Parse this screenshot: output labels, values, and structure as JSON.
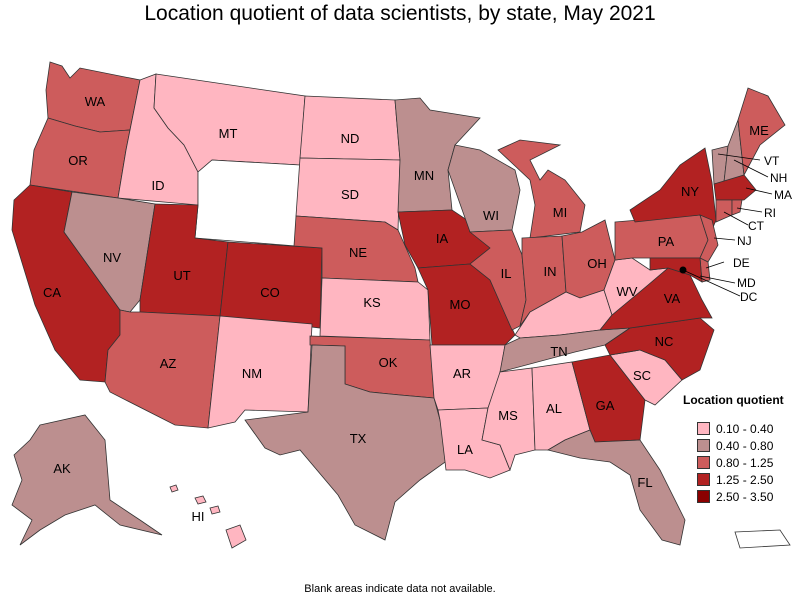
{
  "title": "Location quotient of data scientists, by state, May 2021",
  "footnote": "Blank areas indicate data not available.",
  "legend": {
    "title": "Location quotient",
    "items": [
      {
        "label": "0.10 - 0.40",
        "color": "#ffb6c1"
      },
      {
        "label": "0.40 - 0.80",
        "color": "#bc8f8f"
      },
      {
        "label": "0.80 - 1.25",
        "color": "#cd5c5c"
      },
      {
        "label": "1.25 - 2.50",
        "color": "#b22222"
      },
      {
        "label": "2.50 - 3.50",
        "color": "#8b0000"
      }
    ]
  },
  "states": {
    "WA": {
      "label": "WA",
      "bin": 2
    },
    "OR": {
      "label": "OR",
      "bin": 2
    },
    "CA": {
      "label": "CA",
      "bin": 3
    },
    "ID": {
      "label": "ID",
      "bin": 0
    },
    "NV": {
      "label": "NV",
      "bin": 1
    },
    "MT": {
      "label": "MT",
      "bin": 0
    },
    "WY": {
      "label": "",
      "bin": -1
    },
    "UT": {
      "label": "UT",
      "bin": 3
    },
    "AZ": {
      "label": "AZ",
      "bin": 2
    },
    "CO": {
      "label": "CO",
      "bin": 3
    },
    "NM": {
      "label": "NM",
      "bin": 0
    },
    "ND": {
      "label": "ND",
      "bin": 0
    },
    "SD": {
      "label": "SD",
      "bin": 0
    },
    "NE": {
      "label": "NE",
      "bin": 2
    },
    "KS": {
      "label": "KS",
      "bin": 0
    },
    "OK": {
      "label": "OK",
      "bin": 2
    },
    "TX": {
      "label": "TX",
      "bin": 1
    },
    "MN": {
      "label": "MN",
      "bin": 1
    },
    "IA": {
      "label": "IA",
      "bin": 3
    },
    "MO": {
      "label": "MO",
      "bin": 3
    },
    "AR": {
      "label": "AR",
      "bin": 0
    },
    "LA": {
      "label": "LA",
      "bin": 0
    },
    "WI": {
      "label": "WI",
      "bin": 1
    },
    "IL": {
      "label": "IL",
      "bin": 2
    },
    "MI": {
      "label": "MI",
      "bin": 2
    },
    "IN": {
      "label": "IN",
      "bin": 2
    },
    "OH": {
      "label": "OH",
      "bin": 2
    },
    "KY": {
      "label": "",
      "bin": 0
    },
    "TN": {
      "label": "TN",
      "bin": 1
    },
    "MS": {
      "label": "MS",
      "bin": 0
    },
    "AL": {
      "label": "AL",
      "bin": 0
    },
    "GA": {
      "label": "GA",
      "bin": 3
    },
    "FL": {
      "label": "FL",
      "bin": 1
    },
    "SC": {
      "label": "SC",
      "bin": 0
    },
    "NC": {
      "label": "NC",
      "bin": 3
    },
    "VA": {
      "label": "VA",
      "bin": 3
    },
    "WV": {
      "label": "WV",
      "bin": 0
    },
    "PA": {
      "label": "PA",
      "bin": 2
    },
    "NY": {
      "label": "NY",
      "bin": 3
    },
    "ME": {
      "label": "ME",
      "bin": 2
    },
    "VT": {
      "label": "VT",
      "bin": 1
    },
    "NH": {
      "label": "NH",
      "bin": 1
    },
    "MA": {
      "label": "MA",
      "bin": 3
    },
    "RI": {
      "label": "RI",
      "bin": 2
    },
    "CT": {
      "label": "CT",
      "bin": 2
    },
    "NJ": {
      "label": "NJ",
      "bin": 2
    },
    "DE": {
      "label": "DE",
      "bin": 2
    },
    "MD": {
      "label": "MD",
      "bin": 3
    },
    "DC": {
      "label": "DC",
      "bin": 4
    },
    "AK": {
      "label": "AK",
      "bin": 1
    },
    "HI": {
      "label": "HI",
      "bin": 0
    },
    "PR": {
      "label": "",
      "bin": -1
    }
  }
}
